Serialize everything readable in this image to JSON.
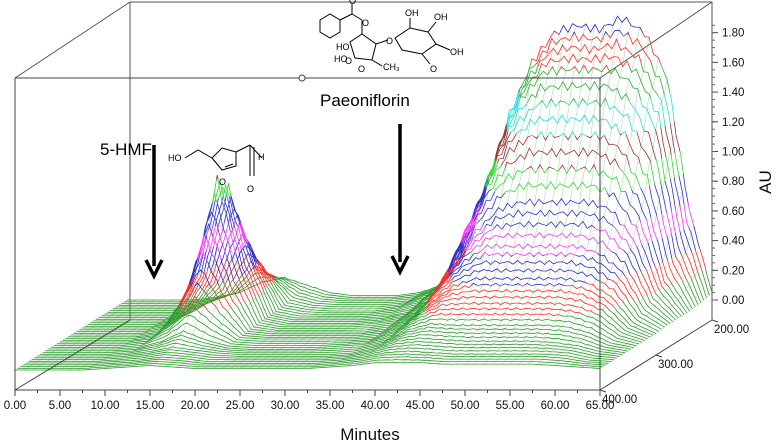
{
  "chart_data": {
    "type": "3d-surface",
    "title": "",
    "xlabel": "Minutes",
    "ylabel": "AU",
    "zlabel": "",
    "xlim": [
      0,
      65
    ],
    "ylim": [
      0,
      1.9
    ],
    "zlim": [
      200,
      400
    ],
    "x_ticks": [
      "0.00",
      "5.00",
      "10.00",
      "15.00",
      "20.00",
      "25.00",
      "30.00",
      "35.00",
      "40.00",
      "45.00",
      "50.00",
      "55.00",
      "60.00",
      "65.00"
    ],
    "y_ticks": [
      "0.00",
      "0.20",
      "0.40",
      "0.60",
      "0.80",
      "1.00",
      "1.20",
      "1.40",
      "1.60",
      "1.80"
    ],
    "z_ticks": [
      "200.00",
      "300.00",
      "400.00"
    ],
    "times": [
      0,
      2.5,
      5,
      7.5,
      10,
      12.5,
      15,
      17.5,
      20,
      22.5,
      25,
      27.5,
      30,
      32.5,
      35,
      37.5,
      40,
      42.5,
      45,
      47.5,
      50,
      52.5,
      55,
      57.5,
      60,
      62.5,
      65
    ],
    "wavelengths": [
      200,
      220,
      240,
      260,
      280,
      300,
      320,
      340,
      360,
      380,
      400
    ],
    "absorbance": [
      [
        0,
        0,
        0,
        0,
        0.02,
        0.05,
        0.12,
        0.15,
        0.1,
        0.05,
        0.03,
        0.03,
        0.03,
        0.05,
        0.1,
        0.3,
        0.75,
        1.25,
        1.6,
        1.8,
        1.85,
        1.82,
        1.9,
        1.8,
        1.5,
        0.6,
        0.05
      ],
      [
        0,
        0,
        0,
        0,
        0.02,
        0.08,
        0.3,
        0.2,
        0.08,
        0.04,
        0.03,
        0.03,
        0.03,
        0.04,
        0.1,
        0.25,
        0.65,
        1.05,
        1.4,
        1.58,
        1.6,
        1.6,
        1.6,
        1.5,
        1.2,
        0.4,
        0.03
      ],
      [
        0,
        0,
        0,
        0,
        0.02,
        0.2,
        0.6,
        0.3,
        0.06,
        0.03,
        0.02,
        0.02,
        0.02,
        0.04,
        0.08,
        0.2,
        0.55,
        0.85,
        1.1,
        1.2,
        1.2,
        1.2,
        1.2,
        1.1,
        0.8,
        0.25,
        0.02
      ],
      [
        0,
        0,
        0,
        0,
        0.03,
        0.3,
        0.9,
        0.4,
        0.05,
        0.02,
        0.02,
        0.02,
        0.02,
        0.03,
        0.06,
        0.15,
        0.4,
        0.6,
        0.75,
        0.8,
        0.8,
        0.8,
        0.8,
        0.75,
        0.55,
        0.18,
        0.02
      ],
      [
        0,
        0,
        0,
        0,
        0.03,
        0.35,
        1.0,
        0.4,
        0.05,
        0.02,
        0.02,
        0.02,
        0.02,
        0.03,
        0.05,
        0.12,
        0.3,
        0.45,
        0.55,
        0.55,
        0.55,
        0.55,
        0.55,
        0.5,
        0.38,
        0.12,
        0.02
      ],
      [
        0,
        0,
        0,
        0,
        0.02,
        0.25,
        0.65,
        0.28,
        0.04,
        0.02,
        0.02,
        0.02,
        0.02,
        0.02,
        0.04,
        0.1,
        0.22,
        0.33,
        0.38,
        0.38,
        0.38,
        0.38,
        0.38,
        0.35,
        0.26,
        0.08,
        0.01
      ],
      [
        0,
        0,
        0,
        0,
        0.02,
        0.12,
        0.3,
        0.15,
        0.03,
        0.02,
        0.02,
        0.02,
        0.02,
        0.02,
        0.03,
        0.08,
        0.18,
        0.25,
        0.26,
        0.26,
        0.26,
        0.26,
        0.26,
        0.24,
        0.18,
        0.06,
        0.01
      ],
      [
        0,
        0,
        0,
        0,
        0.01,
        0.05,
        0.12,
        0.06,
        0.02,
        0.01,
        0.01,
        0.01,
        0.01,
        0.02,
        0.03,
        0.06,
        0.13,
        0.17,
        0.16,
        0.16,
        0.16,
        0.16,
        0.16,
        0.15,
        0.11,
        0.04,
        0.01
      ],
      [
        0,
        0,
        0,
        0,
        0.01,
        0.03,
        0.06,
        0.04,
        0.02,
        0.01,
        0.01,
        0.01,
        0.01,
        0.01,
        0.02,
        0.05,
        0.1,
        0.12,
        0.11,
        0.1,
        0.1,
        0.1,
        0.1,
        0.09,
        0.07,
        0.03,
        0.01
      ],
      [
        0,
        0,
        0,
        0,
        0.01,
        0.02,
        0.04,
        0.03,
        0.01,
        0.01,
        0.01,
        0.01,
        0.01,
        0.01,
        0.02,
        0.04,
        0.07,
        0.08,
        0.07,
        0.06,
        0.06,
        0.06,
        0.06,
        0.06,
        0.05,
        0.02,
        0.01
      ],
      [
        0,
        0,
        0,
        0,
        0.01,
        0.02,
        0.03,
        0.02,
        0.01,
        0.01,
        0.01,
        0.01,
        0.01,
        0.01,
        0.02,
        0.03,
        0.05,
        0.05,
        0.05,
        0.04,
        0.04,
        0.04,
        0.04,
        0.04,
        0.03,
        0.02,
        0.01
      ]
    ],
    "color_bands": [
      {
        "from": 0.0,
        "to": 0.2,
        "color": "#2f9a2f"
      },
      {
        "from": 0.2,
        "to": 0.35,
        "color": "#ff2a2a"
      },
      {
        "from": 0.35,
        "to": 0.5,
        "color": "#2a2acc"
      },
      {
        "from": 0.5,
        "to": 0.65,
        "color": "#ff33ff"
      },
      {
        "from": 0.65,
        "to": 0.85,
        "color": "#3333cc"
      },
      {
        "from": 0.85,
        "to": 1.0,
        "color": "#33dd33"
      },
      {
        "from": 1.0,
        "to": 1.2,
        "color": "#993333"
      },
      {
        "from": 1.2,
        "to": 1.4,
        "color": "#22e0e0"
      },
      {
        "from": 1.4,
        "to": 1.6,
        "color": "#33aa33"
      },
      {
        "from": 1.6,
        "to": 1.8,
        "color": "#ff2a2a"
      },
      {
        "from": 1.8,
        "to": 2.0,
        "color": "#2222cc"
      }
    ],
    "annotations": [
      {
        "text": "5-HMF",
        "x": 15.5,
        "arrow": true
      },
      {
        "text": "Paeoniflorin",
        "x": 43,
        "arrow": true
      }
    ],
    "grid": false,
    "legend": "none"
  },
  "structures": {
    "hmf": {
      "labels": [
        "HO",
        "O",
        "H",
        "O"
      ]
    },
    "paeoniflorin": {
      "labels": [
        "O",
        "O",
        "HO",
        "O",
        "OH",
        "OH",
        "OH",
        "O",
        "O",
        "HO",
        "O",
        "CH₃"
      ]
    }
  }
}
